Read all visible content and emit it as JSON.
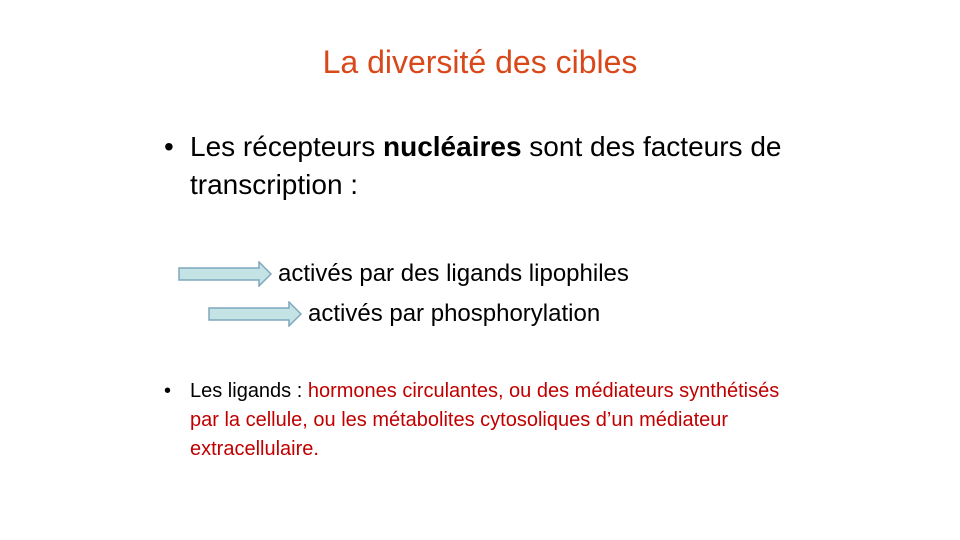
{
  "slide": {
    "title": "La diversité des cibles",
    "bullet1": {
      "marker": "•",
      "text_before": "Les récepteurs ",
      "text_bold": "nucléaires",
      "text_after": " sont des facteurs de transcription :"
    },
    "arrow_items": [
      {
        "label": "activés par des ligands lipophiles"
      },
      {
        "label": "activés par phosphorylation"
      }
    ],
    "bullet2": {
      "marker": "•",
      "lead": "Les ligands : ",
      "highlight": "hormones circulantes, ou des médiateurs synthétisés par la cellule, ou les métabolites cytosoliques d’un médiateur extracellulaire."
    }
  },
  "colors": {
    "title": "#d9481a",
    "text": "#000000",
    "highlight": "#c00000",
    "arrow_fill": "#c4e3e5",
    "arrow_stroke": "#7fa8bd"
  }
}
